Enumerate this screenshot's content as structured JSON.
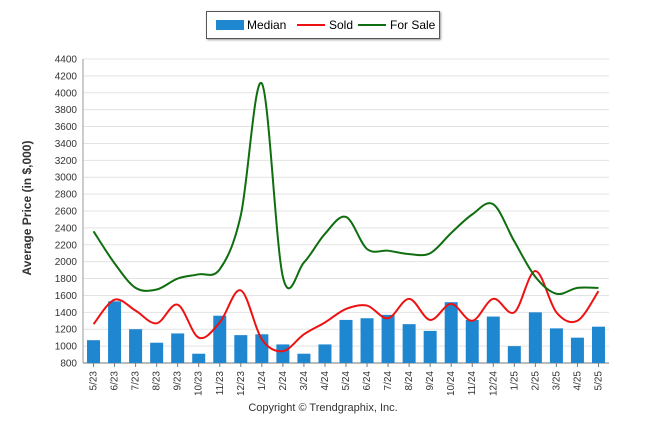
{
  "chart_data": {
    "type": "bar+line",
    "categories": [
      "5/23",
      "6/23",
      "7/23",
      "8/23",
      "9/23",
      "10/23",
      "11/23",
      "12/23",
      "1/24",
      "2/24",
      "3/24",
      "4/24",
      "5/24",
      "6/24",
      "7/24",
      "8/24",
      "9/24",
      "10/24",
      "11/24",
      "12/24",
      "1/25",
      "2/25",
      "3/25",
      "4/25",
      "5/25"
    ],
    "ylabel": "Average Price (in $,000)",
    "ylim": [
      800,
      4400
    ],
    "yticks": [
      800,
      1000,
      1200,
      1400,
      1600,
      1800,
      2000,
      2200,
      2400,
      2600,
      2800,
      3000,
      3200,
      3400,
      3600,
      3800,
      4000,
      4200,
      4400
    ],
    "grid": true,
    "legend_position": "top-center",
    "series": [
      {
        "name": "Median",
        "kind": "bar",
        "color": "#1f86d0",
        "values": [
          1070,
          1530,
          1200,
          1040,
          1150,
          910,
          1360,
          1130,
          1140,
          1020,
          910,
          1020,
          1310,
          1330,
          1370,
          1260,
          1180,
          1520,
          1310,
          1350,
          1000,
          1400,
          1210,
          1100,
          1230
        ]
      },
      {
        "name": "Sold",
        "kind": "line",
        "color": "#ee1111",
        "values": [
          1260,
          1550,
          1420,
          1270,
          1490,
          1100,
          1280,
          1660,
          1080,
          940,
          1140,
          1280,
          1440,
          1480,
          1330,
          1560,
          1310,
          1500,
          1300,
          1560,
          1400,
          1890,
          1400,
          1300,
          1650
        ]
      },
      {
        "name": "For Sale",
        "kind": "line",
        "color": "#0f6e0f",
        "values": [
          2360,
          1980,
          1690,
          1670,
          1800,
          1850,
          1910,
          2550,
          4110,
          1820,
          1990,
          2330,
          2530,
          2150,
          2130,
          2090,
          2100,
          2340,
          2560,
          2680,
          2240,
          1820,
          1620,
          1690,
          1690
        ]
      }
    ]
  },
  "footer": {
    "copyright": "Copyright © Trendgraphix, Inc."
  }
}
